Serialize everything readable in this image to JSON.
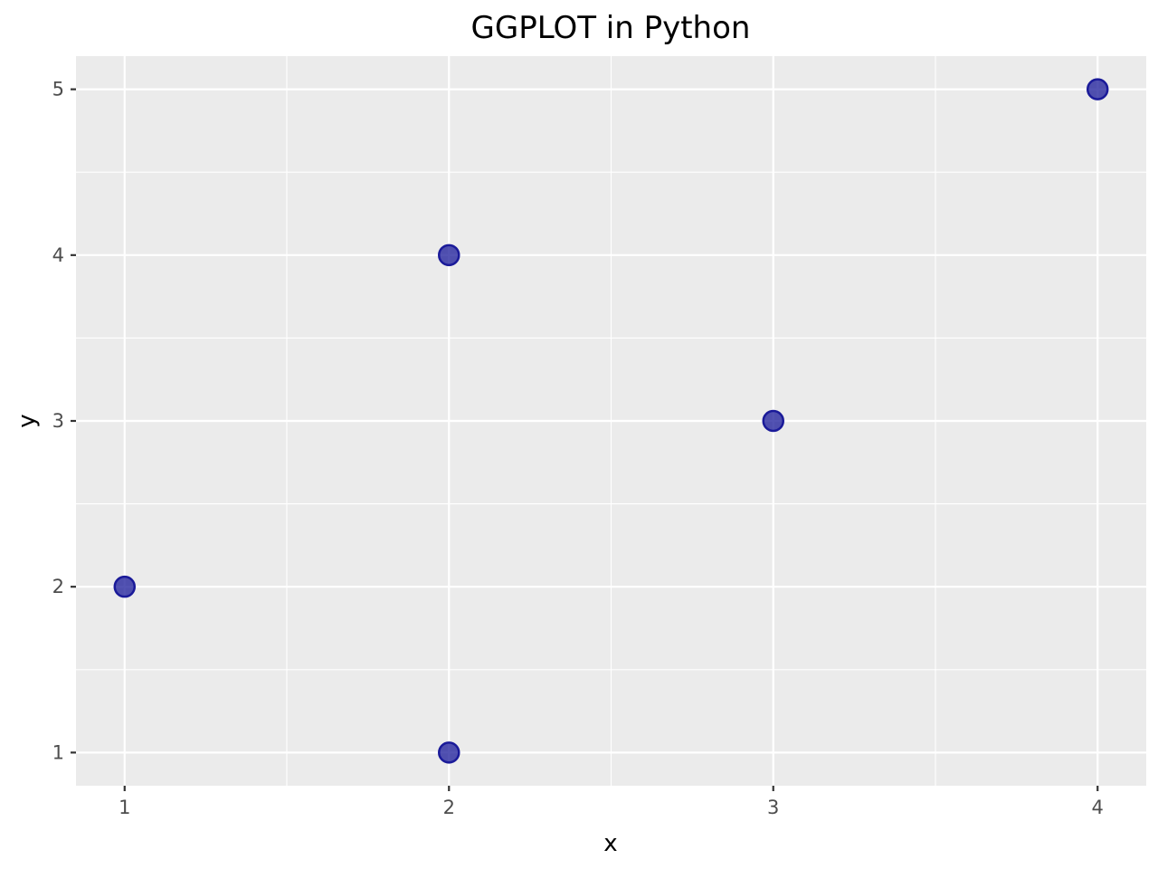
{
  "chart_data": {
    "type": "scatter",
    "title": "GGPLOT in Python",
    "xlabel": "x",
    "ylabel": "y",
    "x": [
      1,
      2,
      2,
      3,
      4
    ],
    "y": [
      2,
      4,
      1,
      3,
      5
    ],
    "xlim": [
      0.85,
      4.15
    ],
    "ylim": [
      0.8,
      5.2
    ],
    "x_ticks": [
      1,
      2,
      3,
      4
    ],
    "y_ticks": [
      1,
      2,
      3,
      4,
      5
    ],
    "grid": true,
    "point_color": "#1a1a99",
    "panel_color": "#ebebeb"
  }
}
